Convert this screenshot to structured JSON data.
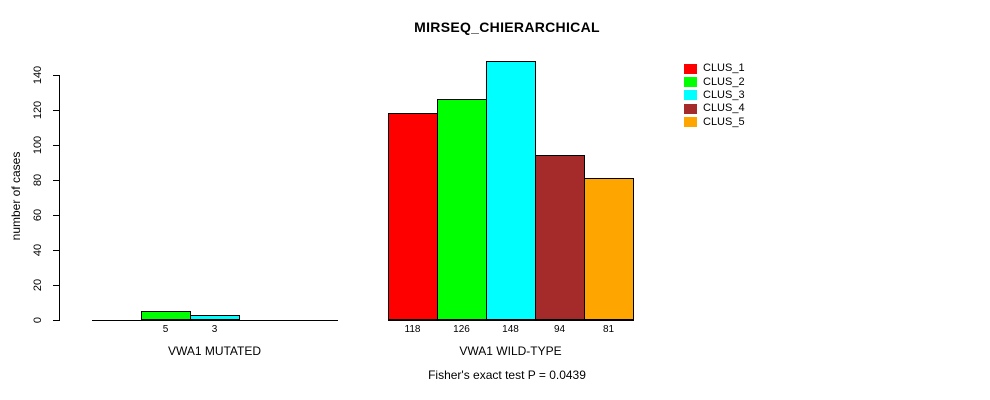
{
  "window": {
    "background_color": "#ffffff",
    "text_color": "#000000"
  },
  "chart_data": {
    "type": "bar",
    "title": "MIRSEQ_CHIERARCHICAL",
    "ylabel": "number of cases",
    "xlabel": "",
    "footnote": "Fisher's exact test P = 0.0439",
    "categories": [
      "VWA1 MUTATED",
      "VWA1 WILD-TYPE"
    ],
    "series": [
      {
        "name": "CLUS_1",
        "color": "#ff0000",
        "values": [
          0,
          118
        ]
      },
      {
        "name": "CLUS_2",
        "color": "#00ff00",
        "values": [
          5,
          126
        ]
      },
      {
        "name": "CLUS_3",
        "color": "#00ffff",
        "values": [
          3,
          148
        ]
      },
      {
        "name": "CLUS_4",
        "color": "#a52a2a",
        "values": [
          0,
          94
        ]
      },
      {
        "name": "CLUS_5",
        "color": "#ffa500",
        "values": [
          0,
          81
        ]
      }
    ],
    "value_labels": {
      "VWA1 MUTATED": [
        "",
        "5",
        "3",
        "",
        ""
      ],
      "VWA1 WILD-TYPE": [
        "118",
        "126",
        "148",
        "94",
        "81"
      ]
    },
    "yticks": [
      0,
      20,
      40,
      60,
      80,
      100,
      120,
      140
    ],
    "ylim": [
      0,
      150
    ],
    "grid": false,
    "legend_position": "top-right",
    "axis_color": "#000000",
    "bar_border_color": "#000000",
    "zero_bars_hidden": true
  }
}
